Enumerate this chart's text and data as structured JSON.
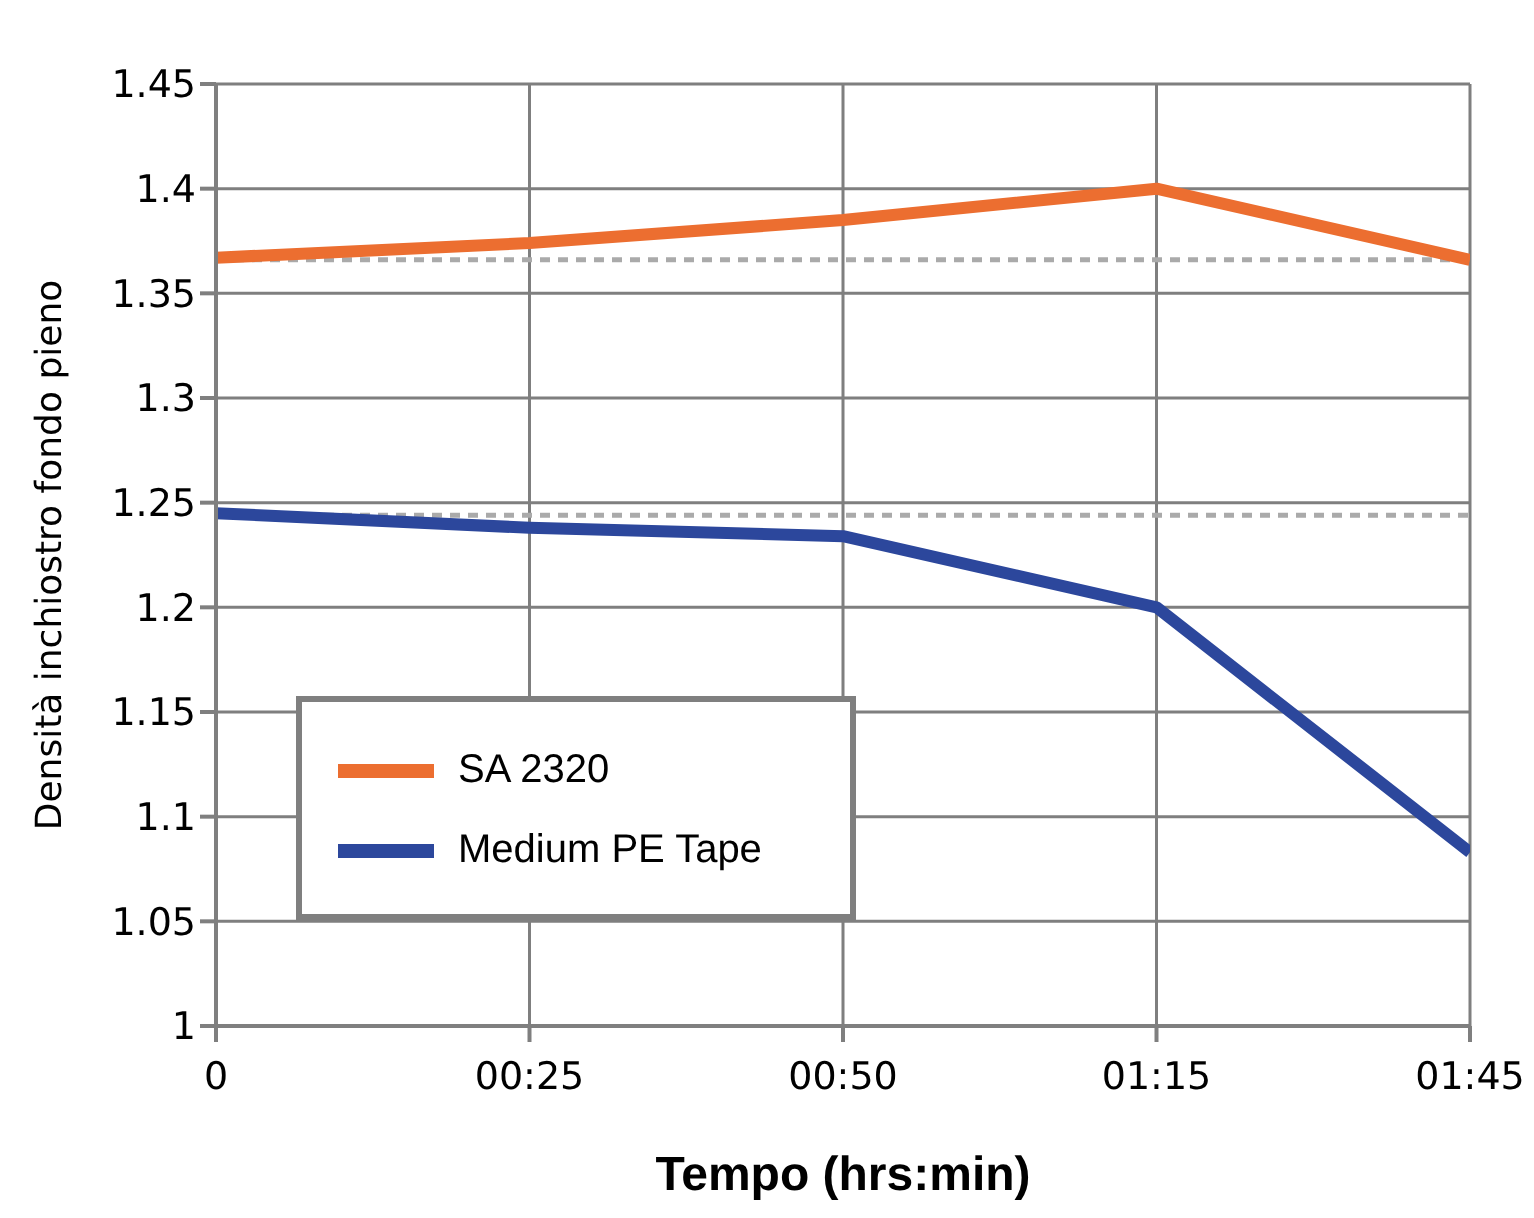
{
  "chart_data": {
    "type": "line",
    "xlabel": "Tempo (hrs:min)",
    "ylabel": "Densità inchiostro fondo pieno",
    "categories": [
      "0",
      "00:25",
      "00:50",
      "01:15",
      "01:45"
    ],
    "series": [
      {
        "name": "SA 2320",
        "color": "#ec6e30",
        "values": [
          1.367,
          1.374,
          1.385,
          1.4,
          1.366
        ]
      },
      {
        "name": "Medium PE Tape",
        "color": "#2c479c",
        "values": [
          1.245,
          1.238,
          1.234,
          1.2,
          1.083
        ]
      }
    ],
    "ylim": [
      1,
      1.45
    ],
    "yticks": [
      1,
      1.05,
      1.1,
      1.15,
      1.2,
      1.25,
      1.3,
      1.35,
      1.4,
      1.45
    ],
    "ref_lines": [
      {
        "axis": "y",
        "value": 1.366,
        "color": "#aaaaaa",
        "line_style": "dashed"
      },
      {
        "axis": "y",
        "value": 1.244,
        "color": "#aaaaaa",
        "line_style": "dashed"
      }
    ],
    "grid": true,
    "legend": "bottom left",
    "marker": "none",
    "line_style": "solid"
  }
}
